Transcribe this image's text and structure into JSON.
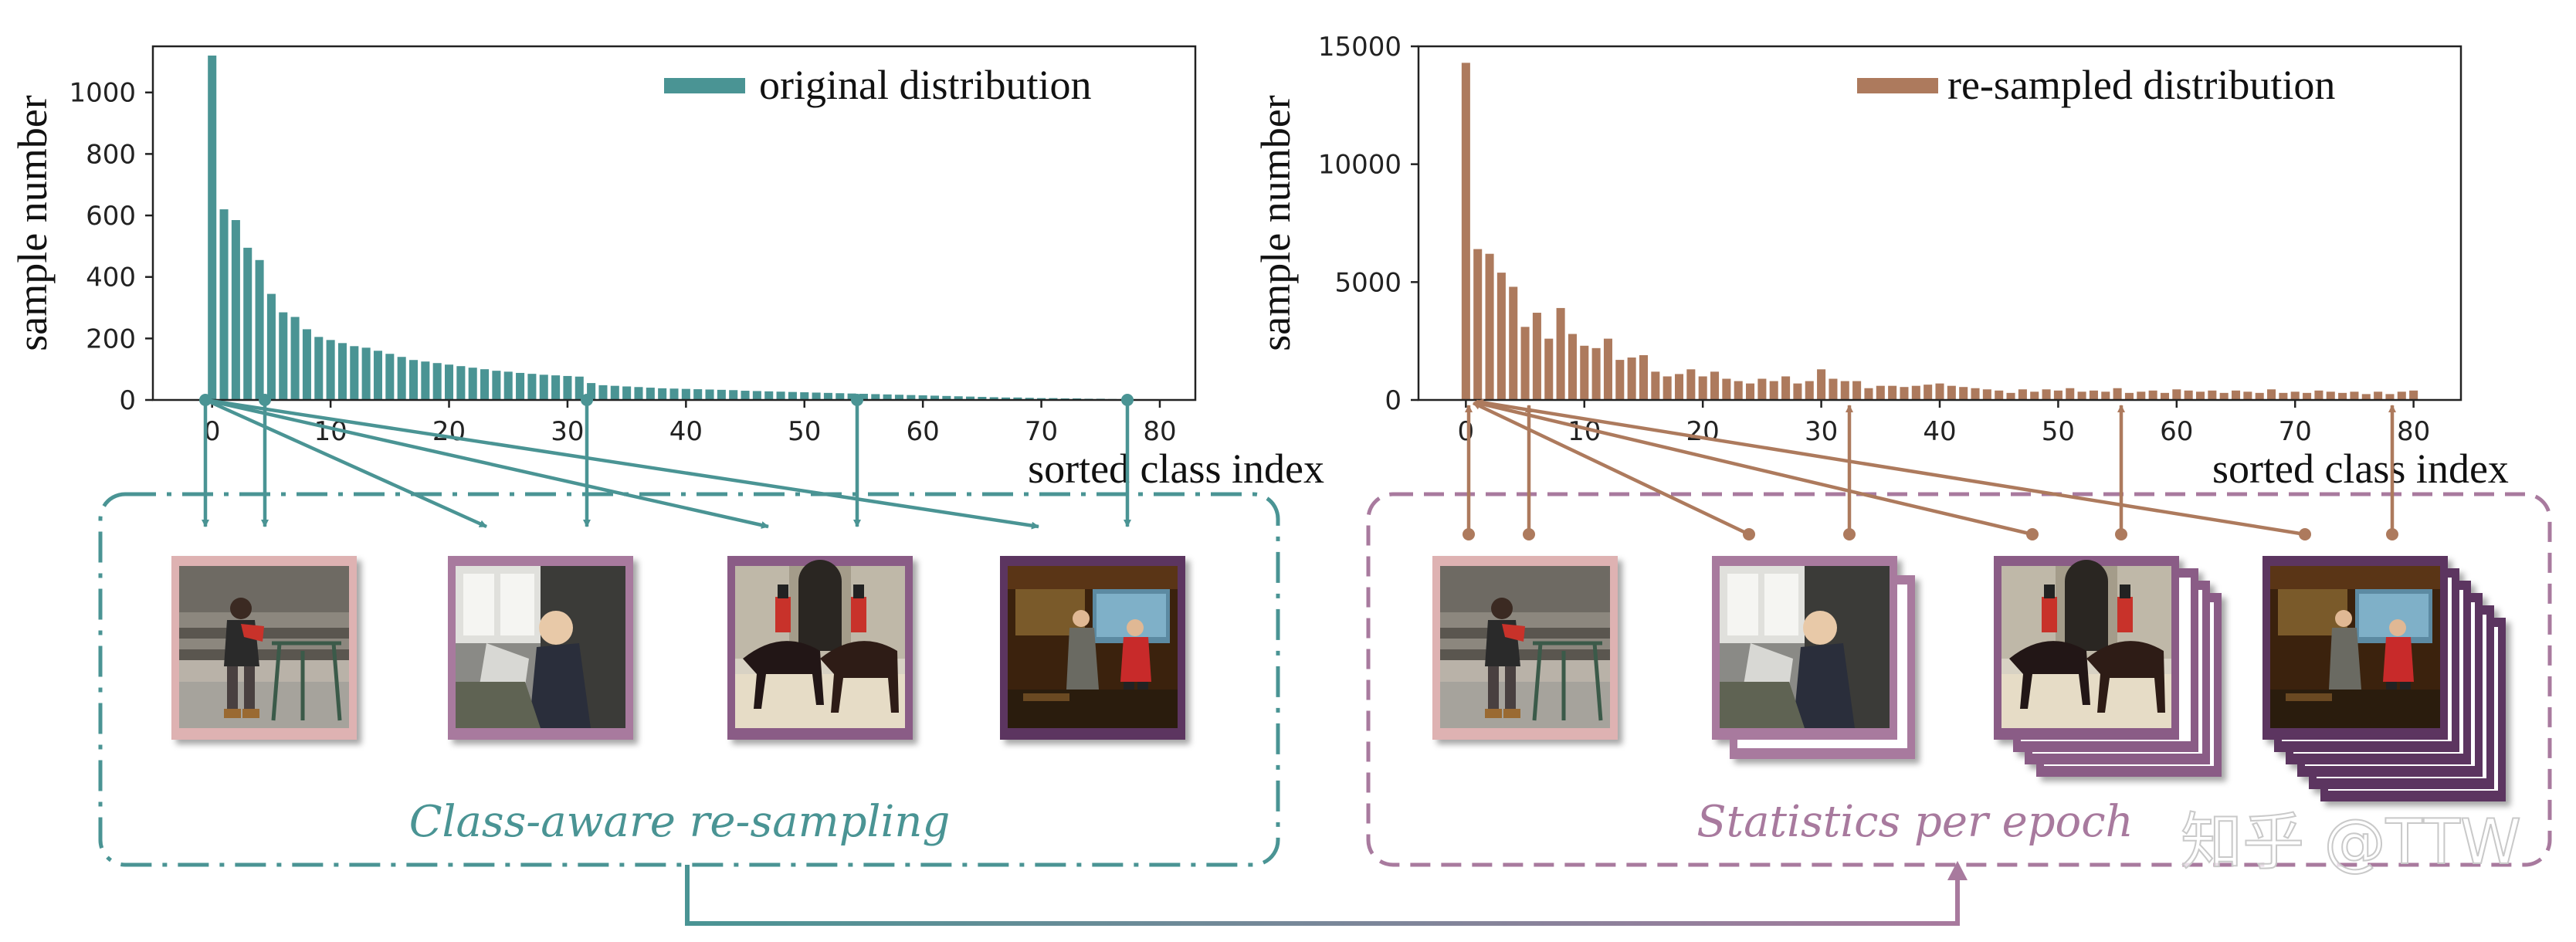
{
  "chart_data": [
    {
      "type": "bar",
      "legend": "original distribution",
      "ylabel": "sample number",
      "xlabel": "sorted class index",
      "color": "#4a9494",
      "ylim": [
        0,
        1150
      ],
      "xlim": [
        -5,
        83
      ],
      "xticks": [
        "0",
        "10",
        "20",
        "30",
        "40",
        "50",
        "60",
        "70",
        "80"
      ],
      "yticks": [
        "0",
        "200",
        "400",
        "600",
        "800",
        "1000"
      ],
      "values": [
        1120,
        620,
        585,
        495,
        455,
        345,
        285,
        270,
        230,
        205,
        195,
        185,
        175,
        170,
        160,
        150,
        140,
        130,
        125,
        120,
        115,
        110,
        105,
        100,
        95,
        92,
        88,
        85,
        82,
        80,
        78,
        76,
        55,
        48,
        46,
        44,
        42,
        40,
        38,
        37,
        36,
        35,
        34,
        33,
        32,
        30,
        29,
        28,
        27,
        26,
        25,
        24,
        23,
        22,
        21,
        20,
        19,
        18,
        17,
        16,
        15,
        14,
        13,
        12,
        11,
        10,
        9,
        8,
        8,
        7,
        6,
        6,
        5,
        5,
        4,
        4,
        3,
        3
      ]
    },
    {
      "type": "bar",
      "legend": "re-sampled distribution",
      "ylabel": "sample number",
      "xlabel": "sorted class index",
      "color": "#ad7a5d",
      "ylim": [
        0,
        15000
      ],
      "xlim": [
        -4,
        84
      ],
      "xticks": [
        "0",
        "10",
        "20",
        "30",
        "40",
        "50",
        "60",
        "70",
        "80"
      ],
      "yticks": [
        "0",
        "5000",
        "10000",
        "15000"
      ],
      "values": [
        14300,
        6400,
        6200,
        5400,
        4800,
        3100,
        3700,
        2600,
        3900,
        2800,
        2300,
        2200,
        2600,
        1700,
        1800,
        1900,
        1200,
        1000,
        1100,
        1300,
        1000,
        1200,
        900,
        800,
        700,
        900,
        800,
        1000,
        700,
        800,
        1300,
        900,
        800,
        800,
        500,
        600,
        600,
        550,
        600,
        650,
        700,
        600,
        550,
        500,
        450,
        400,
        300,
        450,
        350,
        450,
        400,
        500,
        350,
        400,
        350,
        500,
        300,
        350,
        400,
        300,
        450,
        400,
        350,
        400,
        300,
        400,
        350,
        300,
        450,
        300,
        350,
        300,
        400,
        350,
        300,
        350,
        250,
        350,
        250,
        350,
        400
      ]
    }
  ],
  "panel_left": {
    "caption": "Class-aware re-sampling"
  },
  "panel_right": {
    "caption": "Statistics per epoch"
  },
  "watermark": "知乎 @TTW",
  "colors": {
    "teal": "#4a9494",
    "brown": "#ad7a5d",
    "pink_frame": "#deb2b2",
    "mauve_frame": "#a87a9e",
    "purple_frame": "#8a5c86",
    "dark_purple_frame": "#5c3560"
  },
  "thumbnails": [
    {
      "name": "woman-sitting-photo",
      "frame": "pink"
    },
    {
      "name": "child-reading-photo",
      "frame": "mauve"
    },
    {
      "name": "horse-guards-photo",
      "frame": "purple"
    },
    {
      "name": "shop-interior-photo",
      "frame": "dark-purple"
    }
  ]
}
